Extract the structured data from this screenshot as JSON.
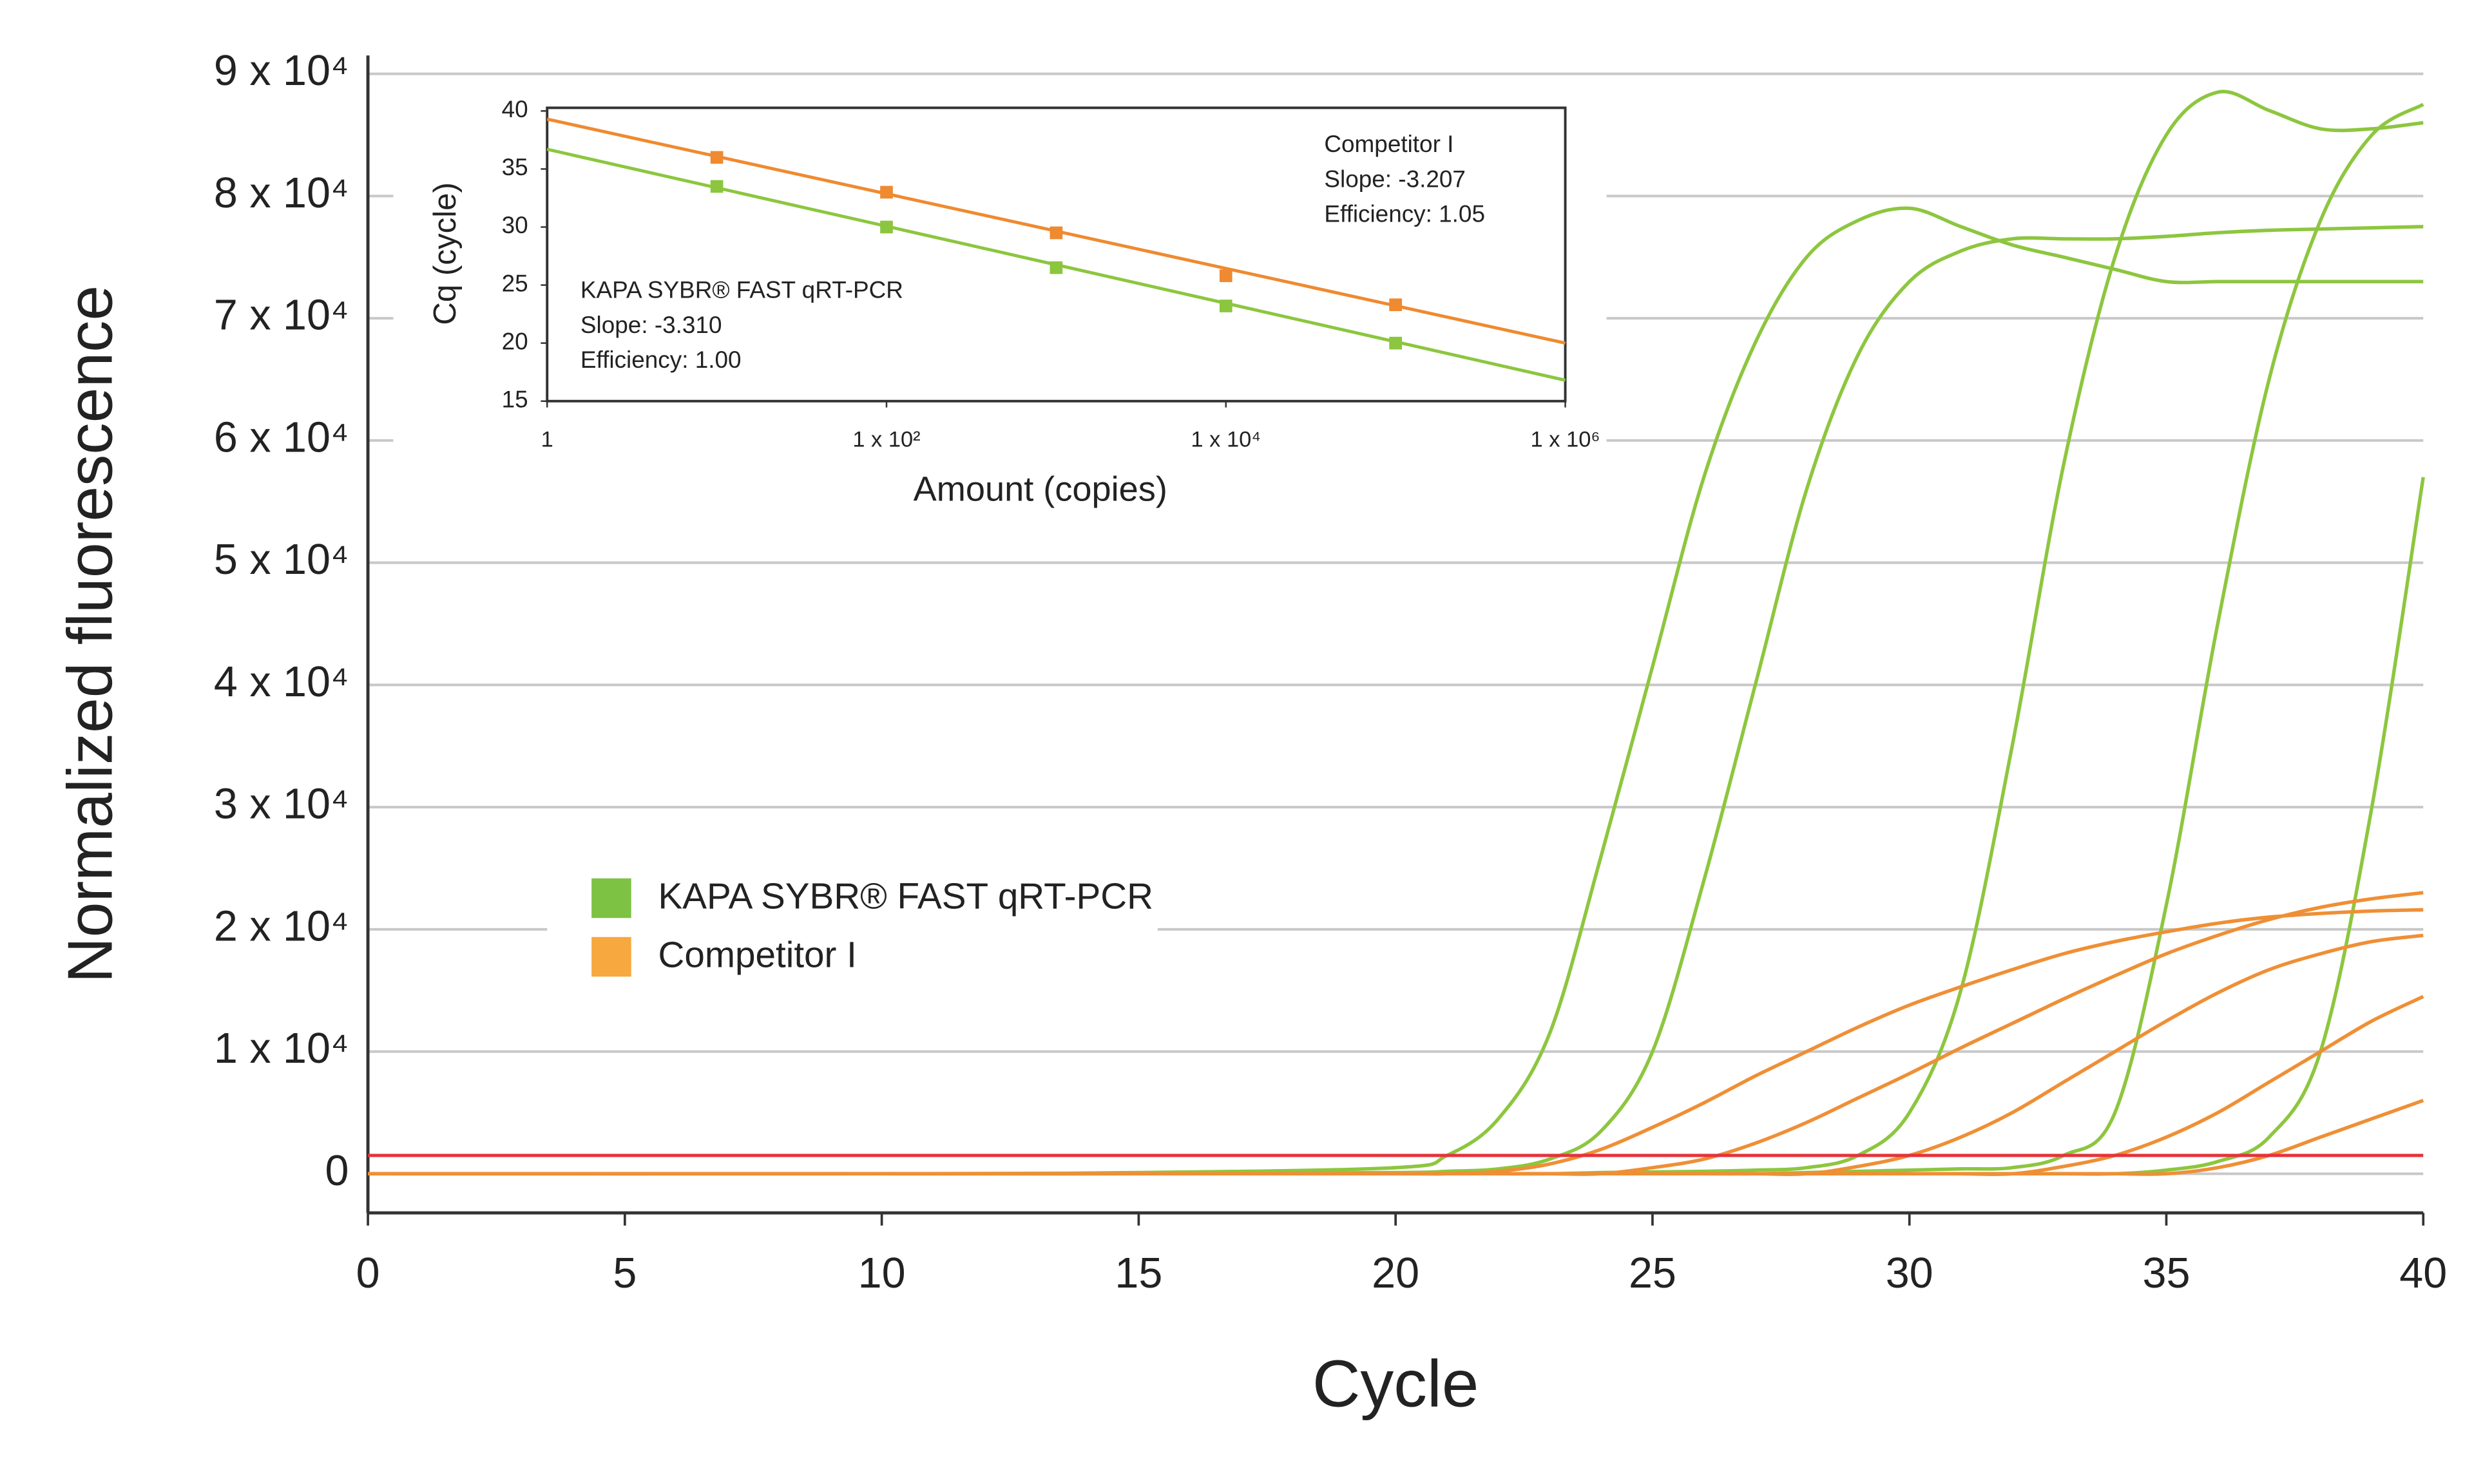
{
  "chart_data": [
    {
      "type": "line",
      "xlabel": "Cycle",
      "ylabel": "Normalized fluorescence",
      "x": [
        0,
        10,
        15,
        20,
        21,
        22,
        23,
        24,
        25,
        26,
        27,
        28,
        29,
        30,
        31,
        32,
        33,
        34,
        35,
        36,
        37,
        38,
        39,
        40
      ],
      "series": [
        {
          "name": "KAPA SYBR® FAST qRT-PCR",
          "color": "#8dc63f",
          "legend_color": "#7dc242",
          "values": [
            [
              0,
              0,
              100,
              500,
              1500,
              4500,
              11500,
              26000,
              41500,
              57000,
              68000,
              75000,
              78000,
              79000,
              77500,
              76000,
              75000,
              74000,
              73000,
              73000,
              73000,
              73000,
              73000,
              73000
            ],
            [
              0,
              0,
              0,
              100,
              200,
              400,
              1200,
              3500,
              10000,
              24000,
              40000,
              56000,
              67000,
              73000,
              75500,
              76500,
              76500,
              76500,
              76700,
              77000,
              77200,
              77300,
              77400,
              77500
            ],
            [
              0,
              0,
              0,
              0,
              0,
              0,
              0,
              100,
              150,
              200,
              300,
              500,
              1500,
              5000,
              15000,
              35000,
              58000,
              75000,
              85000,
              88500,
              87000,
              85500,
              85500,
              86000
            ],
            [
              0,
              0,
              0,
              0,
              0,
              0,
              0,
              0,
              0,
              0,
              0,
              100,
              200,
              300,
              400,
              500,
              1500,
              5000,
              22000,
              45000,
              65000,
              78000,
              85000,
              87500
            ],
            [
              0,
              0,
              0,
              0,
              0,
              0,
              0,
              0,
              0,
              0,
              0,
              0,
              0,
              0,
              0,
              0,
              0,
              0,
              300,
              1000,
              3000,
              10000,
              30000,
              57000
            ]
          ]
        },
        {
          "name": "Competitor I",
          "color": "#ef8f35",
          "legend_color": "#f7a83e",
          "values": [
            [
              0,
              0,
              0,
              0,
              0,
              200,
              800,
              2000,
              3800,
              5800,
              8000,
              10000,
              12000,
              13800,
              15300,
              16700,
              18000,
              19000,
              19800,
              20500,
              21000,
              21300,
              21500,
              21600
            ],
            [
              0,
              0,
              0,
              0,
              0,
              0,
              0,
              0,
              500,
              1200,
              2500,
              4200,
              6200,
              8200,
              10300,
              12300,
              14300,
              16200,
              18000,
              19500,
              20800,
              21800,
              22500,
              23000
            ],
            [
              0,
              0,
              0,
              0,
              0,
              0,
              0,
              0,
              0,
              0,
              0,
              0,
              600,
              1500,
              3000,
              5000,
              7500,
              10000,
              12500,
              14800,
              16700,
              18000,
              19000,
              19500
            ],
            [
              0,
              0,
              0,
              0,
              0,
              0,
              0,
              0,
              0,
              0,
              0,
              0,
              0,
              0,
              0,
              0,
              600,
              1500,
              3000,
              5000,
              7500,
              10000,
              12500,
              14500
            ],
            [
              0,
              0,
              0,
              0,
              0,
              0,
              0,
              0,
              0,
              0,
              0,
              0,
              0,
              0,
              0,
              0,
              0,
              0,
              0,
              500,
              1500,
              3000,
              4500,
              6000
            ]
          ]
        }
      ],
      "threshold": {
        "value": 1500,
        "color": "#e5333b"
      },
      "xlim": [
        0,
        40
      ],
      "xticks": [
        0,
        5,
        10,
        15,
        20,
        25,
        30,
        35,
        40
      ],
      "ylim": [
        -3200,
        91500
      ],
      "yticks": [
        0,
        {
          "value": 10000,
          "label": "1 x 10⁴"
        },
        {
          "value": 20000,
          "label": "2 x 10⁴"
        },
        {
          "value": 30000,
          "label": "3 x 10⁴"
        },
        {
          "value": 40000,
          "label": "4 x 10⁴"
        },
        {
          "value": 50000,
          "label": "5 x 10⁴"
        },
        {
          "value": 60000,
          "label": "6 x 10⁴"
        },
        {
          "value": 70000,
          "label": "7 x 10⁴"
        },
        {
          "value": 80000,
          "label": "8 x 10⁴"
        },
        {
          "value": 90000,
          "label": "9 x 10⁴"
        }
      ],
      "grid": true,
      "legend": "lower left"
    },
    {
      "type": "scatter",
      "xlabel": "Amount (copies)",
      "ylabel": "Cq (cycle)",
      "xscale": "log",
      "x": [
        10,
        100,
        1000,
        10000,
        100000
      ],
      "series": [
        {
          "color": "#8cc63f",
          "values": [
            33.5,
            30,
            26.5,
            23.2,
            20
          ],
          "fit": [
            36.7,
            16.8
          ]
        },
        {
          "color": "#ef8a30",
          "values": [
            36,
            33,
            29.5,
            25.8,
            23.3
          ],
          "fit": [
            39.3,
            20.0
          ]
        }
      ],
      "xlim": [
        1,
        1000000
      ],
      "xticks": [
        1,
        {
          "value": 100,
          "label": "1 x 10²"
        },
        {
          "value": 10000,
          "label": "1 x 10⁴"
        },
        {
          "value": 1000000,
          "label": "1 x 10⁶"
        }
      ],
      "ylim": [
        15,
        40
      ],
      "yticks": [
        15,
        20,
        25,
        30,
        35,
        40
      ],
      "annotations": [
        {
          "lines": [
            "KAPA SYBR® FAST qRT-PCR",
            "Slope: -3.310",
            "Efficiency: 1.00"
          ]
        },
        {
          "lines": [
            "Competitor I",
            "Slope: -3.207",
            "Efficiency: 1.05"
          ]
        }
      ]
    }
  ]
}
